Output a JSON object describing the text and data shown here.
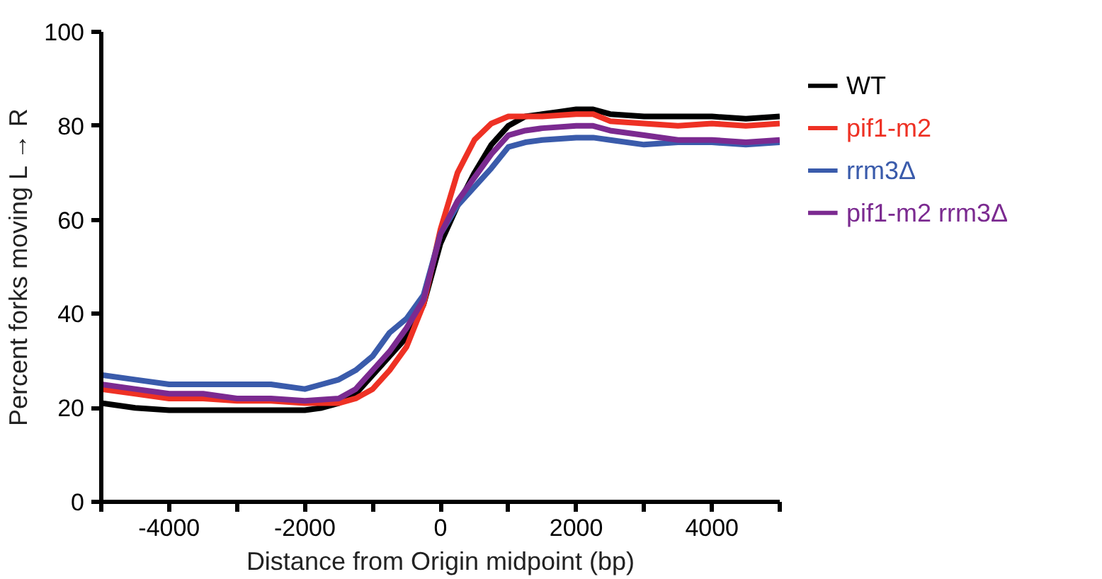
{
  "chart_data": {
    "type": "line",
    "xlabel": "Distance from Origin midpoint (bp)",
    "ylabel": "Percent forks moving L → R",
    "xlim": [
      -5000,
      5000
    ],
    "ylim": [
      0,
      100
    ],
    "xticks": [
      {
        "value": -5000,
        "label": null
      },
      -4000,
      {
        "value": -3000,
        "label": null
      },
      -2000,
      {
        "value": -1000,
        "label": null
      },
      0,
      {
        "value": 1000,
        "label": null
      },
      2000,
      {
        "value": 3000,
        "label": null
      },
      4000,
      {
        "value": 5000,
        "label": null
      }
    ],
    "yticks": [
      0,
      20,
      40,
      60,
      80,
      100
    ],
    "grid": false,
    "legend": "right",
    "marker": "none",
    "line_style": "solid",
    "series": [
      {
        "name": "WT",
        "color": "#000000",
        "x": [
          -5000,
          -4500,
          -4000,
          -3500,
          -3000,
          -2500,
          -2000,
          -1750,
          -1500,
          -1250,
          -1000,
          -750,
          -500,
          -250,
          0,
          250,
          500,
          750,
          1000,
          1250,
          1500,
          1750,
          2000,
          2250,
          2500,
          3000,
          3500,
          4000,
          4500,
          5000
        ],
        "values": [
          21,
          20,
          19.5,
          19.5,
          19.5,
          19.5,
          19.5,
          20,
          21,
          23,
          27,
          31,
          35,
          42,
          55,
          63,
          70,
          76,
          80,
          82,
          82.5,
          83,
          83.5,
          83.5,
          82.5,
          82,
          82,
          82,
          81.5,
          82
        ]
      },
      {
        "name": "pif1-m2",
        "color": "#ee3124",
        "x": [
          -5000,
          -4500,
          -4000,
          -3500,
          -3000,
          -2500,
          -2000,
          -1500,
          -1250,
          -1000,
          -750,
          -500,
          -250,
          0,
          250,
          500,
          750,
          1000,
          1500,
          2000,
          2250,
          2500,
          3000,
          3500,
          4000,
          4500,
          5000
        ],
        "values": [
          24,
          23,
          22,
          22,
          21.5,
          21.5,
          21,
          21,
          22,
          24,
          28,
          33,
          42,
          58,
          70,
          77,
          80.5,
          82,
          82,
          82.5,
          82.5,
          81,
          80.5,
          80,
          80.5,
          80,
          80.5
        ]
      },
      {
        "name": "rrm3Δ",
        "color": "#3a5bab",
        "x": [
          -5000,
          -4500,
          -4000,
          -3500,
          -3000,
          -2500,
          -2000,
          -1750,
          -1500,
          -1250,
          -1000,
          -750,
          -500,
          -250,
          0,
          250,
          500,
          750,
          1000,
          1250,
          1500,
          2000,
          2250,
          2500,
          3000,
          3500,
          4000,
          4500,
          5000
        ],
        "values": [
          27,
          26,
          25,
          25,
          25,
          25,
          24,
          25,
          26,
          28,
          31,
          36,
          39,
          44,
          57,
          63,
          67,
          71,
          75.5,
          76.5,
          77,
          77.5,
          77.5,
          77,
          76,
          76.5,
          76.5,
          76,
          76.5
        ]
      },
      {
        "name": "pif1-m2 rrm3Δ",
        "color": "#7b2a90",
        "x": [
          -5000,
          -4500,
          -4000,
          -3500,
          -3000,
          -2500,
          -2000,
          -1500,
          -1250,
          -1000,
          -750,
          -500,
          -250,
          0,
          250,
          500,
          750,
          1000,
          1250,
          1500,
          2000,
          2250,
          2500,
          3000,
          3500,
          4000,
          4500,
          5000
        ],
        "values": [
          25,
          24,
          23,
          23,
          22,
          22,
          21.5,
          22,
          24,
          28,
          32,
          37,
          43,
          57,
          64,
          69,
          74,
          78,
          79,
          79.5,
          80,
          80,
          79,
          78,
          77,
          77,
          76.5,
          77
        ]
      }
    ]
  }
}
